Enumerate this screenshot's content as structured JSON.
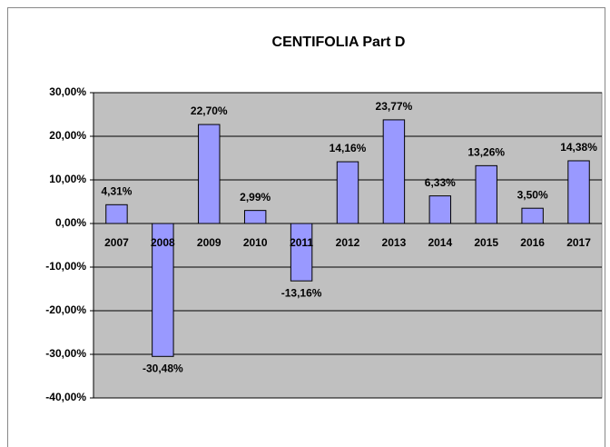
{
  "chart_data": {
    "type": "bar",
    "title": "CENTIFOLIA  Part D",
    "categories": [
      "2007",
      "2008",
      "2009",
      "2010",
      "2011",
      "2012",
      "2013",
      "2014",
      "2015",
      "2016",
      "2017"
    ],
    "values": [
      4.31,
      -30.48,
      22.7,
      2.99,
      -13.16,
      14.16,
      23.77,
      6.33,
      13.26,
      3.5,
      14.38
    ],
    "value_labels": [
      "4,31%",
      "-30,48%",
      "22,70%",
      "2,99%",
      "-13,16%",
      "14,16%",
      "23,77%",
      "6,33%",
      "13,26%",
      "3,50%",
      "14,38%"
    ],
    "color": "#9999ff",
    "ylim": [
      -40,
      30
    ],
    "yticks": [
      {
        "value": -40,
        "label": "-40,00%"
      },
      {
        "value": -30,
        "label": "-30,00%"
      },
      {
        "value": -20,
        "label": "-20,00%"
      },
      {
        "value": -10,
        "label": "-10,00%"
      },
      {
        "value": 0,
        "label": "0,00%"
      },
      {
        "value": 10,
        "label": "10,00%"
      },
      {
        "value": 20,
        "label": "20,00%"
      },
      {
        "value": 30,
        "label": "30,00%"
      }
    ],
    "grid": true
  }
}
